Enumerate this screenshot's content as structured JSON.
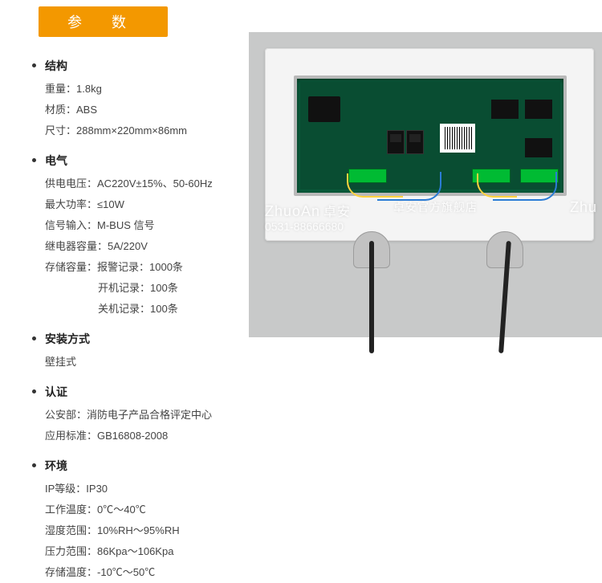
{
  "header": {
    "title": "参 数"
  },
  "sections": {
    "structure": {
      "heading": "结构",
      "items": [
        {
          "label": "重量：",
          "value": "1.8kg"
        },
        {
          "label": "材质：",
          "value": "ABS"
        },
        {
          "label": "尺寸：",
          "value": "288mm×220mm×86mm"
        }
      ]
    },
    "electrical": {
      "heading": "电气",
      "items": [
        {
          "label": "供电电压：",
          "value": "AC220V±15%、50-60Hz"
        },
        {
          "label": "最大功率：",
          "value": "≤10W"
        },
        {
          "label": "信号输入：",
          "value": "M-BUS 信号"
        },
        {
          "label": "继电器容量：",
          "value": "5A/220V"
        },
        {
          "label": "存储容量：",
          "value": "报警记录：1000条"
        }
      ],
      "extra": [
        {
          "value": "开机记录：100条"
        },
        {
          "value": "关机记录：100条"
        }
      ]
    },
    "installation": {
      "heading": "安装方式",
      "items": [
        {
          "label": "",
          "value": "壁挂式"
        }
      ]
    },
    "certification": {
      "heading": "认证",
      "items": [
        {
          "label": "公安部：",
          "value": "消防电子产品合格评定中心"
        },
        {
          "label": "应用标准：",
          "value": "GB16808-2008"
        }
      ]
    },
    "environment": {
      "heading": "环境",
      "items": [
        {
          "label": "IP等级：",
          "value": "IP30"
        },
        {
          "label": "工作温度：",
          "value": "0℃～40℃"
        },
        {
          "label": "湿度范围：",
          "value": "10%RH～95%RH"
        },
        {
          "label": "压力范围：",
          "value": "86Kpa～106Kpa"
        },
        {
          "label": "存储温度：",
          "value": "-10℃～50℃"
        }
      ]
    }
  },
  "watermark": {
    "brand_en": "ZhuoAn",
    "brand_cn": "卓安",
    "slogan": "卓安官方旗舰店",
    "phone": "0531-88666680",
    "edge": "Zhu"
  },
  "styling": {
    "badge_bg": "#f39800",
    "badge_fg": "#ffffff",
    "text_color": "#444444",
    "heading_color": "#222222",
    "font_size_body": 13,
    "font_size_heading": 14,
    "line_height": 2.0,
    "pcb_color": "#094d32",
    "enclosure_color": "#f4f4f4",
    "backdrop_color": "#c8c9c9"
  }
}
